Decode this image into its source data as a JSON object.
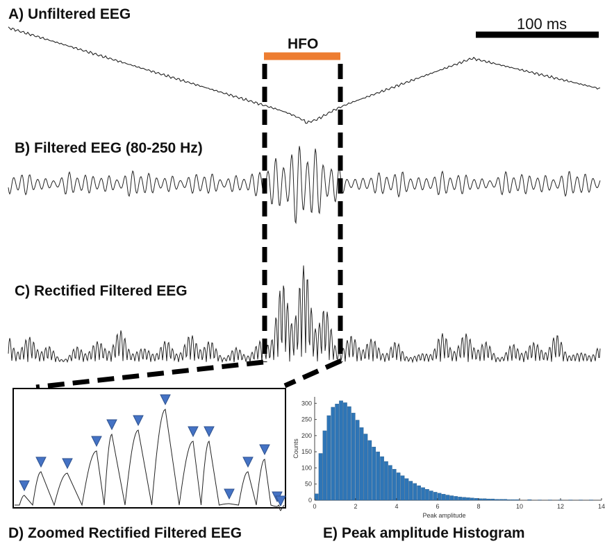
{
  "panels": {
    "a_title": "A) Unfiltered EEG",
    "b_title": "B) Filtered EEG (80-250 Hz)",
    "c_title": "C) Rectified Filtered EEG",
    "d_title": "D) Zoomed Rectified Filtered EEG",
    "e_title": "E) Peak amplitude Histogram"
  },
  "scale_bar": {
    "label": "100 ms"
  },
  "hfo_marker": {
    "label": "HFO",
    "color": "#ED7D31"
  },
  "colors": {
    "trace": "#222222",
    "peak_marker": "#4472C4",
    "histogram_bar": "#2E75B6"
  },
  "peak_markers": {
    "count": 14
  },
  "chart_data": {
    "type": "bar",
    "xlabel": "Peak amplitude",
    "ylabel": "Counts",
    "xlim": [
      0,
      14
    ],
    "ylim": [
      0,
      320
    ],
    "xticks": [
      "0",
      "2",
      "4",
      "6",
      "8",
      "10",
      "12",
      "14"
    ],
    "yticks": [
      "0",
      "50",
      "100",
      "150",
      "200",
      "250",
      "300"
    ],
    "bin_centers": [
      0.1,
      0.3,
      0.5,
      0.7,
      0.9,
      1.1,
      1.3,
      1.5,
      1.7,
      1.9,
      2.1,
      2.3,
      2.5,
      2.7,
      2.9,
      3.1,
      3.3,
      3.5,
      3.7,
      3.9,
      4.1,
      4.3,
      4.5,
      4.7,
      4.9,
      5.1,
      5.3,
      5.5,
      5.7,
      5.9,
      6.1,
      6.3,
      6.5,
      6.7,
      6.9,
      7.1,
      7.3,
      7.5,
      7.7,
      7.9,
      8.1,
      8.3,
      8.5,
      8.7,
      8.9,
      9.1,
      9.3,
      9.5,
      9.7,
      9.9,
      10.5,
      11.0,
      11.5,
      12.0,
      12.5,
      13.0,
      13.5
    ],
    "values": [
      20,
      145,
      215,
      262,
      288,
      298,
      308,
      302,
      290,
      270,
      248,
      225,
      205,
      185,
      165,
      150,
      135,
      120,
      108,
      96,
      85,
      76,
      67,
      59,
      52,
      45,
      39,
      34,
      29,
      25,
      22,
      19,
      16,
      14,
      12,
      10,
      9,
      8,
      7,
      6,
      5,
      5,
      4,
      4,
      3,
      3,
      3,
      2,
      2,
      2,
      2,
      1,
      1,
      1,
      1,
      1,
      1
    ]
  }
}
